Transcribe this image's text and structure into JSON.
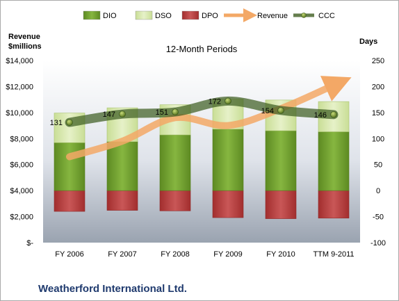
{
  "chart_data": {
    "type": "bar",
    "title": "",
    "subtitle": "12-Month Periods",
    "footer_title": "Weatherford International Ltd.",
    "categories": [
      "FY 2006",
      "FY 2007",
      "FY 2008",
      "FY 2009",
      "FY 2010",
      "TTM 9-2011"
    ],
    "left_axis": {
      "label_line1": "Revenue",
      "label_line2": "$millions",
      "ylim": [
        0,
        14000
      ],
      "ticks": [
        0,
        2000,
        4000,
        6000,
        8000,
        10000,
        12000,
        14000
      ],
      "tick_labels": [
        "$-",
        "$2,000",
        "$4,000",
        "$6,000",
        "$8,000",
        "$10,000",
        "$12,000",
        "$14,000"
      ]
    },
    "right_axis": {
      "label": "Days",
      "ylim": [
        -100,
        250
      ],
      "ticks": [
        -100,
        -50,
        0,
        50,
        100,
        150,
        200,
        250
      ],
      "tick_labels": [
        "-100",
        "-50",
        "0",
        "50",
        "100",
        "150",
        "200",
        "250"
      ]
    },
    "series": [
      {
        "name": "DIO",
        "axis": "right",
        "kind": "bar",
        "color": "#6b9a2c",
        "values": [
          92,
          94,
          107,
          118,
          115,
          113
        ]
      },
      {
        "name": "DSO",
        "axis": "right",
        "kind": "bar-stacked",
        "color": "#d4e6a8",
        "values": [
          57,
          65,
          58,
          58,
          59,
          58
        ]
      },
      {
        "name": "DPO",
        "axis": "right",
        "kind": "bar-negative",
        "color": "#b33a3a",
        "values": [
          -40,
          -38,
          -39,
          -52,
          -54,
          -53
        ]
      },
      {
        "name": "Revenue",
        "axis": "left",
        "kind": "line-arrow",
        "color": "#f0a050",
        "values": [
          6600,
          7800,
          9600,
          9000,
          10300,
          12100
        ]
      },
      {
        "name": "CCC",
        "axis": "right",
        "kind": "line-marker",
        "color": "#4a6b2a",
        "values": [
          131,
          147,
          151,
          172,
          154,
          146
        ]
      }
    ],
    "data_labels": [
      "131",
      "147",
      "151",
      "172",
      "154",
      "146"
    ],
    "legend": {
      "position": "top",
      "items": [
        "DIO",
        "DSO",
        "DPO",
        "Revenue",
        "CCC"
      ]
    },
    "grid": false
  }
}
